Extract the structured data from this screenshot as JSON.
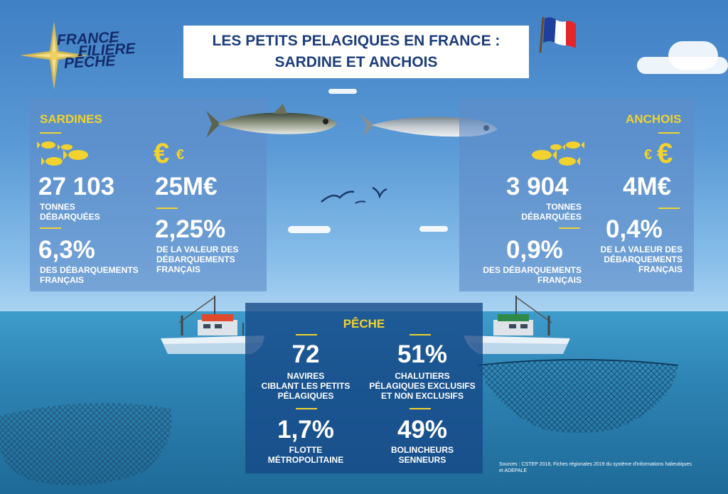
{
  "title": {
    "line1": "LES PETITS PELAGIQUES EN FRANCE :",
    "line2": "SARDINE ET ANCHOIS"
  },
  "logo": {
    "line1": "FRANCE",
    "line2": "FILIÈRE",
    "line3": "PÊCHE"
  },
  "sardines": {
    "heading": "SARDINES",
    "tonnes_value": "27 103",
    "tonnes_label_1": "TONNES",
    "tonnes_label_2": "DÉBARQUÉES",
    "value_value": "25M€",
    "share_value": "6,3%",
    "share_label_1": "DES DÉBARQUEMENTS",
    "share_label_2": "FRANÇAIS",
    "value_share_value": "2,25%",
    "value_share_label_1": "DE LA VALEUR DES",
    "value_share_label_2": "DÉBARQUEMENTS",
    "value_share_label_3": "FRANÇAIS"
  },
  "anchois": {
    "heading": "ANCHOIS",
    "tonnes_value": "3 904",
    "tonnes_label_1": "TONNES",
    "tonnes_label_2": "DÉBARQUÉES",
    "value_value": "4M€",
    "share_value": "0,9%",
    "share_label_1": "DES DÉBARQUEMENTS",
    "share_label_2": "FRANÇAIS",
    "value_share_value": "0,4%",
    "value_share_label_1": "DE LA VALEUR DES",
    "value_share_label_2": "DÉBARQUEMENTS",
    "value_share_label_3": "FRANÇAIS"
  },
  "peche": {
    "heading": "PÊCHE",
    "ships_value": "72",
    "ships_label_1": "NAVIRES",
    "ships_label_2": "CIBLANT LES PETITS",
    "ships_label_3": "PÉLAGIQUES",
    "trawlers_value": "51%",
    "trawlers_label_1": "CHALUTIERS",
    "trawlers_label_2": "PÉLAGIQUES EXCLUSIFS",
    "trawlers_label_3": "ET NON EXCLUSIFS",
    "fleet_value": "1,7%",
    "fleet_label_1": "FLOTTE",
    "fleet_label_2": "MÉTROPOLITAINE",
    "seiners_value": "49%",
    "seiners_label_1": "BOLINCHEURS",
    "seiners_label_2": "SENNEURS"
  },
  "sources": {
    "line1": "Sources : CSTEP 2018, Fiches régionales 2019 du système d'informations halieutiques",
    "line2": "et ADEPALE"
  },
  "euro_symbol": "€",
  "colors": {
    "accent": "#f2d22e",
    "title_text": "#1d3e7a",
    "logo_text": "#142c6b"
  },
  "icons": [
    "compass-rose-icon",
    "french-flag-icon",
    "fish-school-icon",
    "euro-icon",
    "sardine-fish-icon",
    "anchovy-fish-icon",
    "seagull-icon",
    "fishing-boat-icon",
    "fishing-net-icon"
  ]
}
